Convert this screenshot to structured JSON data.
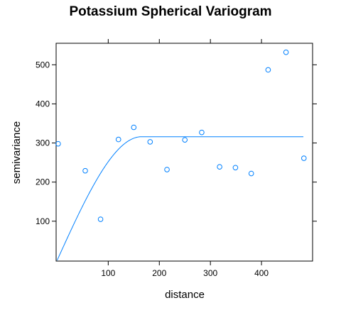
{
  "chart_data": {
    "type": "scatter",
    "title": "Potassium Spherical Variogram",
    "xlabel": "distance",
    "ylabel": "semivariance",
    "xlim": [
      -2,
      500
    ],
    "ylim": [
      -2,
      555
    ],
    "x_ticks": [
      100,
      200,
      300,
      400
    ],
    "y_ticks": [
      100,
      200,
      300,
      400,
      500
    ],
    "grid": false,
    "colors": {
      "points": "#0080ff",
      "fit": "#0080ff",
      "frame": "#000000"
    },
    "series": [
      {
        "type": "scatter",
        "points": [
          [
            2,
            298
          ],
          [
            55,
            229
          ],
          [
            85,
            105
          ],
          [
            120,
            309
          ],
          [
            150,
            340
          ],
          [
            182,
            303
          ],
          [
            215,
            232
          ],
          [
            250,
            308
          ],
          [
            283,
            327
          ],
          [
            318,
            239
          ],
          [
            349,
            237
          ],
          [
            380,
            222
          ],
          [
            413,
            487
          ],
          [
            448,
            532
          ],
          [
            483,
            261
          ]
        ]
      },
      {
        "type": "line",
        "model": "spherical",
        "nugget": 0,
        "sill": 316,
        "range": 165,
        "x_max": 483
      }
    ]
  }
}
